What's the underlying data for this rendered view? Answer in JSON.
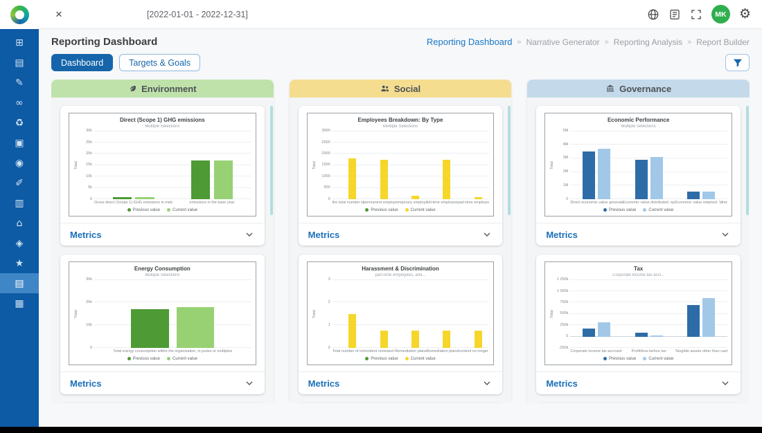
{
  "topbar": {
    "close_label": "×",
    "date_range": "[2022-01-01 - 2022-12-31]",
    "avatar_initials": "MK",
    "gear_glyph": "⚙"
  },
  "header": {
    "title": "Reporting Dashboard",
    "breadcrumb_separator": "»",
    "breadcrumbs": [
      {
        "label": "Reporting Dashboard",
        "active": true
      },
      {
        "label": "Narrative Generator",
        "active": false
      },
      {
        "label": "Reporting Analysis",
        "active": false
      },
      {
        "label": "Report Builder",
        "active": false
      }
    ]
  },
  "tabs": [
    {
      "label": "Dashboard",
      "active": true
    },
    {
      "label": "Targets & Goals",
      "active": false
    }
  ],
  "sidebar": {
    "items": [
      {
        "name": "dashboard",
        "glyph": "⊞",
        "active": false
      },
      {
        "name": "company",
        "glyph": "▤",
        "active": false
      },
      {
        "name": "disclosures",
        "glyph": "✎",
        "active": false
      },
      {
        "name": "integrations",
        "glyph": "∞",
        "active": false
      },
      {
        "name": "environment",
        "glyph": "♻",
        "active": false
      },
      {
        "name": "portfolio",
        "glyph": "▣",
        "active": false
      },
      {
        "name": "energy",
        "glyph": "◉",
        "active": false
      },
      {
        "name": "materiality",
        "glyph": "✐",
        "active": false
      },
      {
        "name": "documents",
        "glyph": "▥",
        "active": false
      },
      {
        "name": "governance",
        "glyph": "⌂",
        "active": false
      },
      {
        "name": "risk",
        "glyph": "◈",
        "active": false
      },
      {
        "name": "awards",
        "glyph": "★",
        "active": false
      },
      {
        "name": "reports",
        "glyph": "▤",
        "active": true
      },
      {
        "name": "templates",
        "glyph": "▦",
        "active": false
      }
    ]
  },
  "columns": [
    {
      "title": "Environment",
      "icon": "leaf",
      "header_bg": "#bfe2ab",
      "metrics_label": "Metrics",
      "charts": [
        0,
        1
      ]
    },
    {
      "title": "Social",
      "icon": "people",
      "header_bg": "#f5dd90",
      "metrics_label": "Metrics",
      "charts": [
        2,
        3
      ]
    },
    {
      "title": "Governance",
      "icon": "bank",
      "header_bg": "#c4daeb",
      "metrics_label": "Metrics",
      "charts": [
        4,
        5
      ]
    }
  ],
  "chart_data": [
    {
      "type": "bar",
      "title": "Direct (Scope 1) GHG emissions",
      "subtitle": "Multiple Selections",
      "ylabel": "Total",
      "ylim": [
        0,
        30000
      ],
      "grid": true,
      "legend_position": "bottom",
      "yticks": [
        {
          "label": "30k",
          "value": 30000
        },
        {
          "label": "25k",
          "value": 25000
        },
        {
          "label": "20k",
          "value": 20000
        },
        {
          "label": "15k",
          "value": 15000
        },
        {
          "label": "10k",
          "value": 10000
        },
        {
          "label": "5k",
          "value": 5000
        },
        {
          "label": "0",
          "value": 0
        }
      ],
      "categories": [
        "Gross direct (Scope 1) GHG emissions in metric tons of C...",
        "emissions in the base year"
      ],
      "series": [
        {
          "name": "Previous value",
          "color": "#4e9a35",
          "values": [
            900,
            17000
          ]
        },
        {
          "name": "Current value",
          "color": "#97d174",
          "values": [
            900,
            17000
          ]
        }
      ]
    },
    {
      "type": "bar",
      "title": "Energy Consumption",
      "subtitle": "Multiple Selections",
      "ylabel": "Total",
      "ylim": [
        0,
        30000
      ],
      "grid": true,
      "legend_position": "bottom",
      "yticks": [
        {
          "label": "30k",
          "value": 30000
        },
        {
          "label": "20k",
          "value": 20000
        },
        {
          "label": "10k",
          "value": 10000
        },
        {
          "label": "0",
          "value": 0
        }
      ],
      "categories": [
        "Total energy consumption within the organization, in joules or multiples"
      ],
      "series": [
        {
          "name": "Previous value",
          "color": "#4e9a35",
          "values": [
            17000
          ]
        },
        {
          "name": "Current value",
          "color": "#97d174",
          "values": [
            18000
          ]
        }
      ]
    },
    {
      "type": "bar",
      "title": "Employees Breakdown: By Type",
      "subtitle": "Multiple Selections",
      "ylabel": "Total",
      "ylim": [
        0,
        3000
      ],
      "grid": true,
      "legend_position": "bottom",
      "yticks": [
        {
          "label": "3000",
          "value": 3000
        },
        {
          "label": "2500",
          "value": 2500
        },
        {
          "label": "2000",
          "value": 2000
        },
        {
          "label": "1500",
          "value": 1500
        },
        {
          "label": "1000",
          "value": 1000
        },
        {
          "label": "500",
          "value": 500
        },
        {
          "label": "0",
          "value": 0
        }
      ],
      "categories": [
        "the total number of...",
        "permanent employee...",
        "temporary employees...",
        "full-time employees, a...",
        "part-time employee..."
      ],
      "series": [
        {
          "name": "Previous value",
          "color": "#4e9a35",
          "values": [
            0,
            0,
            0,
            0,
            0
          ]
        },
        {
          "name": "Current value",
          "color": "#f6d62a",
          "values": [
            1800,
            1750,
            150,
            1750,
            100
          ]
        }
      ]
    },
    {
      "type": "bar",
      "title": "Harassment & Discrimination",
      "subtitle": "part-time employees, and...",
      "ylabel": "Total",
      "ylim": [
        0,
        3
      ],
      "grid": true,
      "legend_position": "bottom",
      "yticks": [
        {
          "label": "3",
          "value": 3
        },
        {
          "label": "2",
          "value": 2
        },
        {
          "label": "1",
          "value": 1
        },
        {
          "label": "0",
          "value": 0
        }
      ],
      "categories": [
        "Total number of incide...",
        "Incident reviewed by t...",
        "Remediation plans bei...",
        "Remediation plans tha...",
        "Incident no longer subj..."
      ],
      "series": [
        {
          "name": "Previous value",
          "color": "#4e9a35",
          "values": [
            0,
            0,
            0,
            0,
            0
          ]
        },
        {
          "name": "Current value",
          "color": "#f6d62a",
          "values": [
            1.5,
            0.75,
            0.75,
            0.75,
            0.75
          ]
        }
      ]
    },
    {
      "type": "bar",
      "title": "Economic Performance",
      "subtitle": "Multiple Selections",
      "ylabel": "Total",
      "ylim": [
        0,
        5000000
      ],
      "grid": true,
      "legend_position": "bottom",
      "yticks": [
        {
          "label": "5M",
          "value": 5000000
        },
        {
          "label": "4M",
          "value": 4000000
        },
        {
          "label": "3M",
          "value": 3000000
        },
        {
          "label": "2M",
          "value": 2000000
        },
        {
          "label": "1M",
          "value": 1000000
        },
        {
          "label": "0",
          "value": 0
        }
      ],
      "categories": [
        "Direct economic value generated: reve...",
        "Economic value distributed: operating ...",
        "Economic value retained: 'direct eco..."
      ],
      "series": [
        {
          "name": "Previous value",
          "color": "#2e6ca8",
          "values": [
            3500000,
            2900000,
            550000
          ]
        },
        {
          "name": "Current value",
          "color": "#a2c8e8",
          "values": [
            3700000,
            3100000,
            550000
          ]
        }
      ]
    },
    {
      "type": "bar",
      "title": "Tax",
      "subtitle": "Corporate income tax accr...",
      "ylabel": "Total",
      "ylim": [
        -250000,
        1250000
      ],
      "grid": true,
      "legend_position": "bottom",
      "yticks": [
        {
          "label": "1 250k",
          "value": 1250000
        },
        {
          "label": "1 000k",
          "value": 1000000
        },
        {
          "label": "750k",
          "value": 750000
        },
        {
          "label": "500k",
          "value": 500000
        },
        {
          "label": "250k",
          "value": 250000
        },
        {
          "label": "0",
          "value": 0
        },
        {
          "label": "-250k",
          "value": -250000
        }
      ],
      "categories": [
        "Corporate income tax accrued on prof...",
        "Profit/loss before tax",
        "Tangible assets other than cash and c..."
      ],
      "series": [
        {
          "name": "Previous value",
          "color": "#2e6ca8",
          "values": [
            180000,
            90000,
            700000
          ]
        },
        {
          "name": "Current value",
          "color": "#a2c8e8",
          "values": [
            320000,
            30000,
            850000
          ]
        }
      ]
    }
  ]
}
